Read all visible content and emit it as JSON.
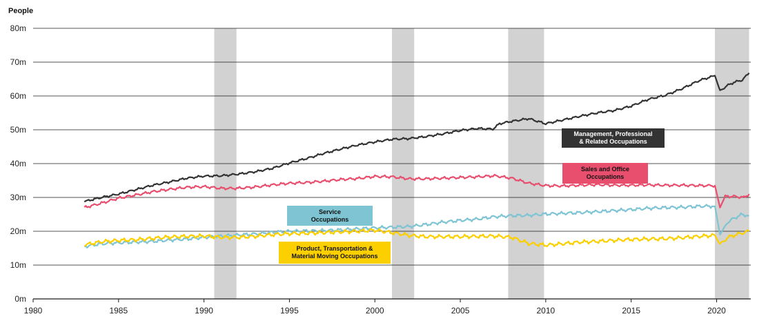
{
  "chart_data": {
    "type": "line",
    "ylabel": "People",
    "xlim": [
      1980,
      2022
    ],
    "ylim": [
      0,
      80
    ],
    "x_ticks": [
      1980,
      1985,
      1990,
      1995,
      2000,
      2005,
      2010,
      2015,
      2020
    ],
    "x_tick_labels": [
      "1980",
      "1985",
      "1990",
      "1995",
      "2000",
      "2005",
      "2010",
      "2015",
      "2020"
    ],
    "y_ticks": [
      0,
      10,
      20,
      30,
      40,
      50,
      60,
      70,
      80
    ],
    "y_tick_labels": [
      "0m",
      "10m",
      "20m",
      "30m",
      "40m",
      "50m",
      "60m",
      "70m",
      "80m"
    ],
    "grid": "horizontal",
    "recessions": [
      [
        1990.6,
        1991.9
      ],
      [
        2001.0,
        2002.3
      ],
      [
        2007.8,
        2009.9
      ],
      [
        2019.9,
        2021.9
      ]
    ],
    "series": [
      {
        "name": "Management, Professional\n& Related Occupations",
        "color": "#333333",
        "label_text_color": "#ffffff",
        "points": [
          [
            1983,
            28.8
          ],
          [
            1984,
            30.0
          ],
          [
            1985,
            31.0
          ],
          [
            1986,
            32.3
          ],
          [
            1987,
            33.6
          ],
          [
            1988,
            34.6
          ],
          [
            1989,
            35.7
          ],
          [
            1990,
            36.3
          ],
          [
            1991,
            36.4
          ],
          [
            1992,
            36.9
          ],
          [
            1993,
            37.6
          ],
          [
            1994,
            38.6
          ],
          [
            1995,
            40.2
          ],
          [
            1996,
            41.5
          ],
          [
            1997,
            43.0
          ],
          [
            1998,
            44.3
          ],
          [
            1999,
            45.5
          ],
          [
            2000,
            46.4
          ],
          [
            2001,
            47.2
          ],
          [
            2002,
            47.4
          ],
          [
            2003,
            48.0
          ],
          [
            2004,
            48.8
          ],
          [
            2005,
            49.8
          ],
          [
            2006,
            50.4
          ],
          [
            2006.9,
            50.2
          ],
          [
            2007.3,
            51.8
          ],
          [
            2008,
            52.5
          ],
          [
            2009,
            53.3
          ],
          [
            2010,
            51.8
          ],
          [
            2011,
            52.9
          ],
          [
            2012,
            54.0
          ],
          [
            2013,
            55.0
          ],
          [
            2014,
            55.7
          ],
          [
            2015,
            57.0
          ],
          [
            2016,
            59.0
          ],
          [
            2017,
            60.2
          ],
          [
            2018,
            62.2
          ],
          [
            2019,
            64.6
          ],
          [
            2019.9,
            66.0
          ],
          [
            2020.2,
            61.5
          ],
          [
            2020.6,
            63.0
          ],
          [
            2021,
            64.0
          ],
          [
            2021.5,
            64.7
          ],
          [
            2021.9,
            66.8
          ]
        ]
      },
      {
        "name": "Sales and Office\nOccupations",
        "color": "#e84f6e",
        "label_text_color": "#111111",
        "points": [
          [
            1983,
            27.0
          ],
          [
            1984,
            28.3
          ],
          [
            1985,
            29.8
          ],
          [
            1986,
            30.7
          ],
          [
            1987,
            31.7
          ],
          [
            1988,
            32.4
          ],
          [
            1989,
            33.0
          ],
          [
            1990,
            33.2
          ],
          [
            1991,
            32.7
          ],
          [
            1992,
            32.7
          ],
          [
            1993,
            33.1
          ],
          [
            1994,
            33.7
          ],
          [
            1995,
            34.2
          ],
          [
            1996,
            34.4
          ],
          [
            1997,
            34.8
          ],
          [
            1998,
            35.3
          ],
          [
            1999,
            35.6
          ],
          [
            2000,
            36.2
          ],
          [
            2001,
            36.1
          ],
          [
            2002,
            35.5
          ],
          [
            2003,
            35.5
          ],
          [
            2004,
            35.7
          ],
          [
            2005,
            35.9
          ],
          [
            2006,
            36.1
          ],
          [
            2007,
            36.4
          ],
          [
            2008,
            35.7
          ],
          [
            2009,
            34.2
          ],
          [
            2010,
            33.5
          ],
          [
            2011,
            33.4
          ],
          [
            2012,
            33.6
          ],
          [
            2013,
            33.8
          ],
          [
            2014,
            33.6
          ],
          [
            2015,
            33.6
          ],
          [
            2016,
            33.7
          ],
          [
            2017,
            33.6
          ],
          [
            2018,
            33.6
          ],
          [
            2019,
            33.5
          ],
          [
            2019.9,
            33.5
          ],
          [
            2020.2,
            27.0
          ],
          [
            2020.5,
            30.3
          ],
          [
            2021,
            30.3
          ],
          [
            2021.6,
            30.0
          ],
          [
            2021.9,
            31.0
          ]
        ]
      },
      {
        "name": "Service\nOccupations",
        "color": "#7ec4d3",
        "label_text_color": "#111111",
        "points": [
          [
            1983,
            15.5
          ],
          [
            1984,
            16.3
          ],
          [
            1985,
            16.6
          ],
          [
            1986,
            16.8
          ],
          [
            1987,
            17.0
          ],
          [
            1988,
            17.4
          ],
          [
            1989,
            17.7
          ],
          [
            1990,
            18.2
          ],
          [
            1991,
            18.6
          ],
          [
            1992,
            18.9
          ],
          [
            1993,
            19.2
          ],
          [
            1994,
            19.7
          ],
          [
            1995,
            20.0
          ],
          [
            1996,
            20.1
          ],
          [
            1997,
            20.2
          ],
          [
            1998,
            20.4
          ],
          [
            1999,
            20.7
          ],
          [
            2000,
            21.0
          ],
          [
            2001,
            21.2
          ],
          [
            2002,
            21.4
          ],
          [
            2003,
            22.0
          ],
          [
            2004,
            22.7
          ],
          [
            2005,
            23.2
          ],
          [
            2006,
            23.6
          ],
          [
            2007,
            24.3
          ],
          [
            2008,
            24.6
          ],
          [
            2009,
            24.7
          ],
          [
            2010,
            25.1
          ],
          [
            2011,
            25.3
          ],
          [
            2012,
            25.5
          ],
          [
            2013,
            25.8
          ],
          [
            2014,
            26.1
          ],
          [
            2015,
            26.4
          ],
          [
            2016,
            26.8
          ],
          [
            2017,
            27.0
          ],
          [
            2018,
            27.1
          ],
          [
            2019,
            27.4
          ],
          [
            2019.9,
            27.4
          ],
          [
            2020.2,
            19.0
          ],
          [
            2020.6,
            22.5
          ],
          [
            2021,
            23.8
          ],
          [
            2021.5,
            25.0
          ],
          [
            2021.9,
            24.5
          ]
        ]
      },
      {
        "name": "Product, Transportation &\nMaterial Moving Occupations",
        "color": "#fbcf00",
        "label_text_color": "#111111",
        "points": [
          [
            1983,
            16.0
          ],
          [
            1984,
            16.9
          ],
          [
            1985,
            17.3
          ],
          [
            1986,
            17.5
          ],
          [
            1987,
            17.9
          ],
          [
            1988,
            18.3
          ],
          [
            1989,
            18.5
          ],
          [
            1990,
            18.6
          ],
          [
            1991,
            18.2
          ],
          [
            1992,
            18.2
          ],
          [
            1993,
            18.5
          ],
          [
            1994,
            19.0
          ],
          [
            1995,
            19.3
          ],
          [
            1996,
            19.4
          ],
          [
            1997,
            19.6
          ],
          [
            1998,
            19.8
          ],
          [
            1999,
            20.0
          ],
          [
            2000,
            20.3
          ],
          [
            2001,
            19.6
          ],
          [
            2002,
            18.8
          ],
          [
            2003,
            18.4
          ],
          [
            2004,
            18.4
          ],
          [
            2005,
            18.4
          ],
          [
            2006,
            18.5
          ],
          [
            2007,
            18.6
          ],
          [
            2008,
            18.2
          ],
          [
            2009,
            16.4
          ],
          [
            2010,
            15.9
          ],
          [
            2011,
            16.3
          ],
          [
            2012,
            16.8
          ],
          [
            2013,
            17.0
          ],
          [
            2014,
            17.3
          ],
          [
            2015,
            17.6
          ],
          [
            2016,
            17.7
          ],
          [
            2017,
            17.8
          ],
          [
            2018,
            18.1
          ],
          [
            2019,
            18.5
          ],
          [
            2019.9,
            18.8
          ],
          [
            2020.2,
            16.0
          ],
          [
            2020.6,
            18.0
          ],
          [
            2021,
            18.8
          ],
          [
            2021.5,
            19.5
          ],
          [
            2021.9,
            20.0
          ]
        ]
      }
    ]
  }
}
